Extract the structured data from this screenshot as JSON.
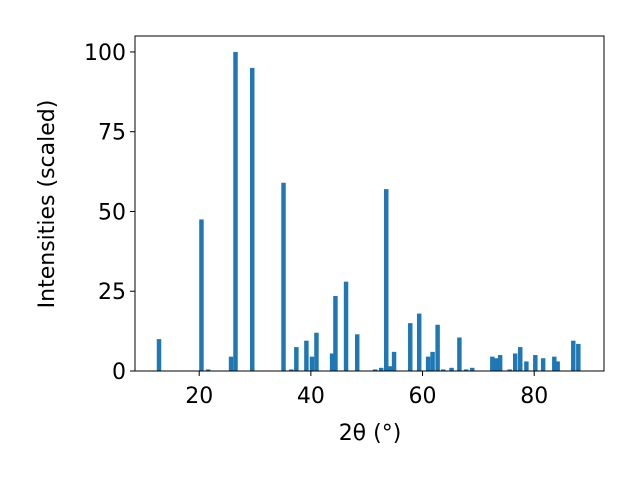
{
  "chart_data": {
    "type": "bar",
    "color": "#1f77b4",
    "x_label": "2θ (°)",
    "y_label": "Intensities (scaled)",
    "x": [
      12.8,
      20.4,
      21.6,
      25.7,
      26.5,
      29.5,
      35.1,
      36.5,
      37.4,
      39.2,
      40.2,
      41.0,
      43.8,
      44.4,
      46.3,
      48.3,
      51.5,
      52.6,
      53.5,
      54.2,
      54.9,
      57.8,
      59.4,
      61.0,
      61.8,
      62.7,
      63.7,
      65.2,
      66.6,
      67.8,
      68.9,
      72.5,
      73.2,
      73.9,
      75.6,
      76.6,
      77.5,
      78.6,
      80.2,
      81.6,
      83.6,
      84.2,
      87.0,
      87.9
    ],
    "values": [
      10,
      47.5,
      0.5,
      4.5,
      100,
      95,
      59,
      0.5,
      7.5,
      9.5,
      4.5,
      12,
      5.5,
      23.5,
      28,
      11.5,
      0.5,
      1,
      57,
      1.5,
      6,
      15,
      18,
      4.5,
      6,
      14.5,
      0.5,
      1,
      10.5,
      0.5,
      1,
      4.5,
      4,
      5,
      0.5,
      5.5,
      7.5,
      3,
      5,
      4,
      4.5,
      3,
      9.5,
      8.5
    ],
    "xlim": [
      8.5,
      92.5
    ],
    "xticks": [
      20,
      40,
      60,
      80
    ],
    "ylim": [
      0,
      105
    ],
    "yticks": [
      0,
      25,
      50,
      75,
      100
    ]
  }
}
